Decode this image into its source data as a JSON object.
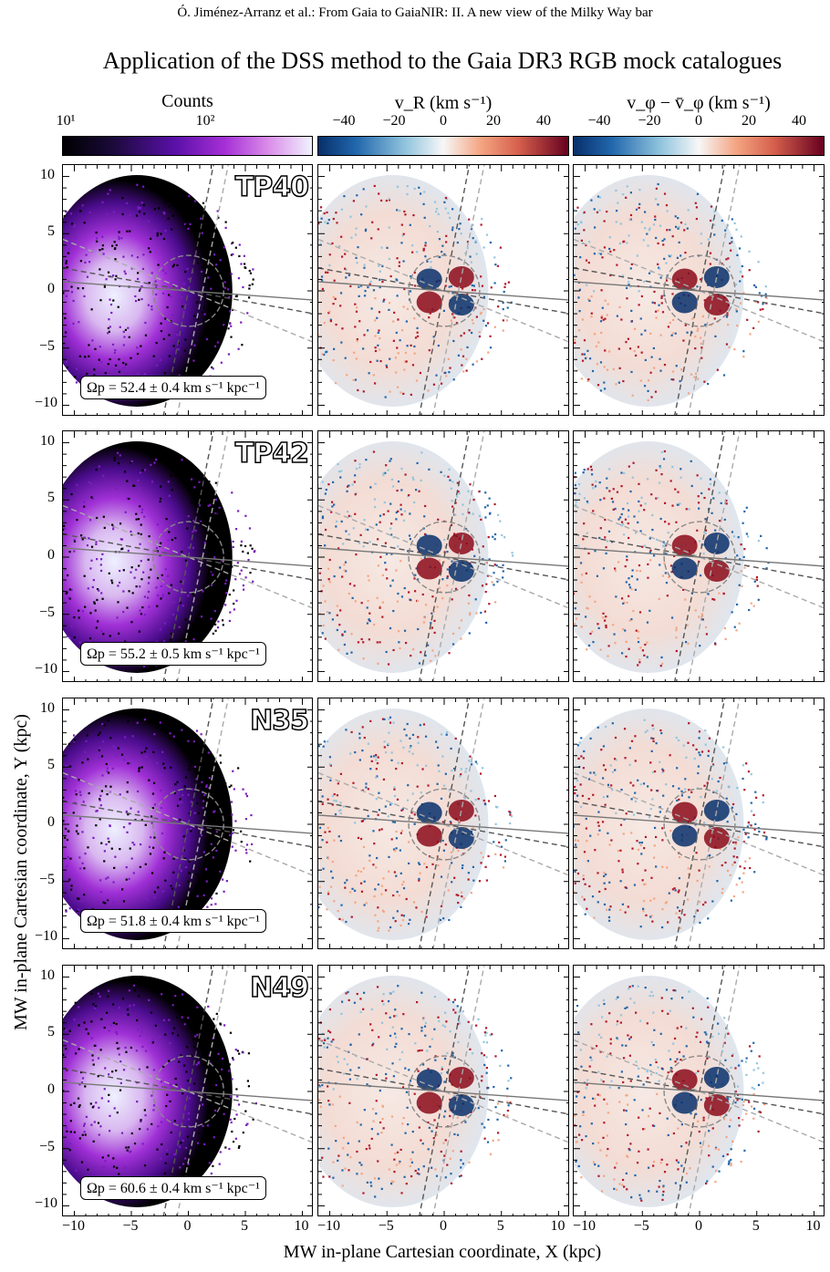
{
  "header": "Ó. Jiménez-Arranz et al.: From Gaia to GaiaNIR: II. A new view of the Milky Way bar",
  "figure_title": "Application of the DSS method to the Gaia DR3 RGB mock catalogues",
  "colorbars": [
    {
      "title": "Counts",
      "ticks": [
        "10¹",
        "10²"
      ],
      "cmap": "magma-like"
    },
    {
      "title": "v_R (km s⁻¹)",
      "ticks": [
        "−40",
        "−20",
        "0",
        "20",
        "40"
      ],
      "cmap": "RdBu_r"
    },
    {
      "title": "v_φ − v̄_φ (km s⁻¹)",
      "ticks": [
        "−40",
        "−20",
        "0",
        "20",
        "40"
      ],
      "cmap": "RdBu_r"
    }
  ],
  "rows": [
    {
      "model": "TP40",
      "omega": "Ωp = 52.4 ± 0.4 km s⁻¹ kpc⁻¹"
    },
    {
      "model": "TP42",
      "omega": "Ωp = 55.2 ± 0.5 km s⁻¹ kpc⁻¹"
    },
    {
      "model": "N35",
      "omega": "Ωp = 51.8 ± 0.4 km s⁻¹ kpc⁻¹"
    },
    {
      "model": "N49",
      "omega": "Ωp = 60.6 ± 0.4 km s⁻¹ kpc⁻¹"
    }
  ],
  "y_ticks": [
    "10",
    "5",
    "0",
    "−5",
    "−10"
  ],
  "x_ticks": [
    "−10",
    "−5",
    "0",
    "5",
    "10"
  ],
  "xlabel": "MW in-plane Cartesian coordinate, X (kpc)",
  "ylabel": "MW in-plane Cartesian coordinate, Y (kpc)",
  "colors": {
    "counts_low": "#000000",
    "counts_mid": "#8a1fd1",
    "counts_high": "#f0f2ff",
    "neg": "#08306b",
    "pos": "#67000d"
  }
}
